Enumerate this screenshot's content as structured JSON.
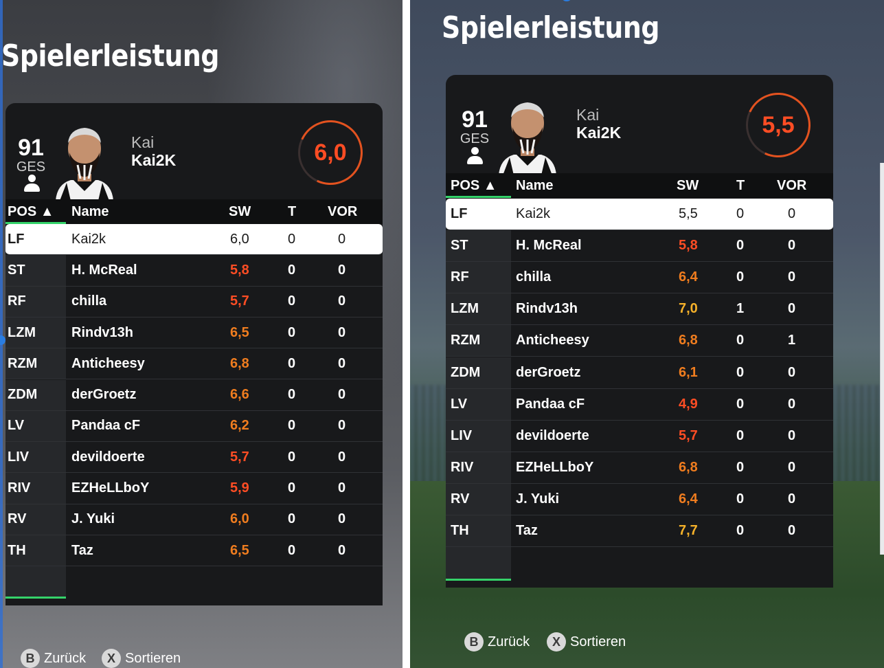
{
  "colors": {
    "rating_red": "#ff4d24",
    "rating_orange": "#f07d1f",
    "rating_yellow": "#f5b12a",
    "accent_green": "#35d36a",
    "panel": "#18191b"
  },
  "hints": {
    "back_button": "B",
    "back_label": "Zurück",
    "sort_button": "X",
    "sort_label": "Sortieren"
  },
  "screens": [
    {
      "title": "Spielerleistung",
      "overall": "91",
      "overall_label": "GES",
      "first_name": "Kai",
      "last_name": "Kai2K",
      "rating": "6,0",
      "headers": {
        "pos": "POS ▲",
        "name": "Name",
        "sw": "SW",
        "t": "T",
        "vor": "VOR"
      },
      "rows": [
        {
          "pos": "LF",
          "name": "Kai2k",
          "sw": "6,0",
          "t": "0",
          "vor": "0",
          "color": "sel"
        },
        {
          "pos": "ST",
          "name": "H. McReal",
          "sw": "5,8",
          "t": "0",
          "vor": "0",
          "color": "red"
        },
        {
          "pos": "RF",
          "name": "chilla",
          "sw": "5,7",
          "t": "0",
          "vor": "0",
          "color": "red"
        },
        {
          "pos": "LZM",
          "name": "Rindv13h",
          "sw": "6,5",
          "t": "0",
          "vor": "0",
          "color": "orange"
        },
        {
          "pos": "RZM",
          "name": "Anticheesy",
          "sw": "6,8",
          "t": "0",
          "vor": "0",
          "color": "orange"
        },
        {
          "pos": "ZDM",
          "name": "derGroetz",
          "sw": "6,6",
          "t": "0",
          "vor": "0",
          "color": "orange"
        },
        {
          "pos": "LV",
          "name": "Pandaa cF",
          "sw": "6,2",
          "t": "0",
          "vor": "0",
          "color": "orange"
        },
        {
          "pos": "LIV",
          "name": "devildoerte",
          "sw": "5,7",
          "t": "0",
          "vor": "0",
          "color": "red"
        },
        {
          "pos": "RIV",
          "name": "EZHeLLboY",
          "sw": "5,9",
          "t": "0",
          "vor": "0",
          "color": "red"
        },
        {
          "pos": "RV",
          "name": "J. Yuki",
          "sw": "6,0",
          "t": "0",
          "vor": "0",
          "color": "orange"
        },
        {
          "pos": "TH",
          "name": "Taz",
          "sw": "6,5",
          "t": "0",
          "vor": "0",
          "color": "orange"
        }
      ]
    },
    {
      "title": "Spielerleistung",
      "overall": "91",
      "overall_label": "GES",
      "first_name": "Kai",
      "last_name": "Kai2K",
      "rating": "5,5",
      "headers": {
        "pos": "POS ▲",
        "name": "Name",
        "sw": "SW",
        "t": "T",
        "vor": "VOR"
      },
      "rows": [
        {
          "pos": "LF",
          "name": "Kai2k",
          "sw": "5,5",
          "t": "0",
          "vor": "0",
          "color": "sel"
        },
        {
          "pos": "ST",
          "name": "H. McReal",
          "sw": "5,8",
          "t": "0",
          "vor": "0",
          "color": "red"
        },
        {
          "pos": "RF",
          "name": "chilla",
          "sw": "6,4",
          "t": "0",
          "vor": "0",
          "color": "orange"
        },
        {
          "pos": "LZM",
          "name": "Rindv13h",
          "sw": "7,0",
          "t": "1",
          "vor": "0",
          "color": "yellow"
        },
        {
          "pos": "RZM",
          "name": "Anticheesy",
          "sw": "6,8",
          "t": "0",
          "vor": "1",
          "color": "orange"
        },
        {
          "pos": "ZDM",
          "name": "derGroetz",
          "sw": "6,1",
          "t": "0",
          "vor": "0",
          "color": "orange"
        },
        {
          "pos": "LV",
          "name": "Pandaa cF",
          "sw": "4,9",
          "t": "0",
          "vor": "0",
          "color": "red"
        },
        {
          "pos": "LIV",
          "name": "devildoerte",
          "sw": "5,7",
          "t": "0",
          "vor": "0",
          "color": "red"
        },
        {
          "pos": "RIV",
          "name": "EZHeLLboY",
          "sw": "6,8",
          "t": "0",
          "vor": "0",
          "color": "orange"
        },
        {
          "pos": "RV",
          "name": "J. Yuki",
          "sw": "6,4",
          "t": "0",
          "vor": "0",
          "color": "orange"
        },
        {
          "pos": "TH",
          "name": "Taz",
          "sw": "7,7",
          "t": "0",
          "vor": "0",
          "color": "yellow"
        }
      ]
    }
  ]
}
